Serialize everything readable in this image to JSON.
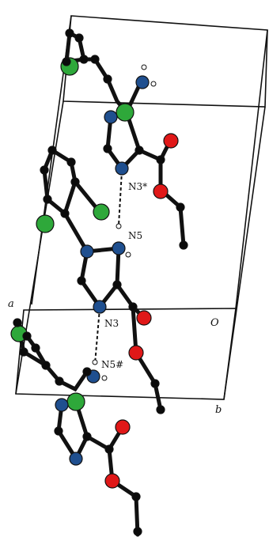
{
  "labels": {
    "n3_star": "N3*",
    "n5": "N5",
    "n3": "N3",
    "n5_hash": "N5#",
    "axis_a": "a",
    "axis_b": "b",
    "axis_o": "O"
  },
  "colors": {
    "carbon": "#0b0b0b",
    "nitrogen": "#1f4f8f",
    "oxygen": "#e01818",
    "chlorine": "#2ea83a",
    "hydrogen": "#ffffff",
    "bond": "#111111",
    "cell": "#111111"
  }
}
